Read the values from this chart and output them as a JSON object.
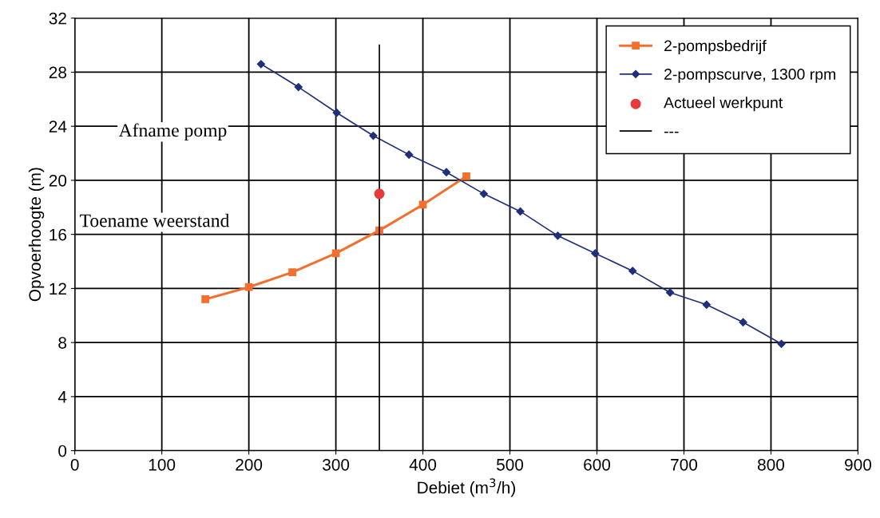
{
  "chart_data": {
    "type": "line",
    "xlabel": "Debiet (m$^{3}$/h)",
    "ylabel": "Opvoerhoogte (m)",
    "xlim": [
      0,
      900
    ],
    "xticks": [
      0,
      100,
      200,
      300,
      400,
      500,
      600,
      700,
      800,
      900
    ],
    "ylim": [
      0,
      32
    ],
    "yticks": [
      0,
      4,
      8,
      12,
      16,
      20,
      24,
      28,
      32
    ],
    "grid": true,
    "legend": "top right",
    "series": [
      {
        "name": "2-pompsbedrijf",
        "color": "#f26f2e",
        "marker": "square",
        "x": [
          150,
          200,
          250,
          300,
          350,
          400,
          450
        ],
        "values": [
          11.2,
          12.1,
          13.2,
          14.6,
          16.3,
          18.2,
          20.3
        ]
      },
      {
        "name": "2-pompscurve, 1300 rpm",
        "color": "#1f2f7a",
        "marker": "diamond",
        "x": [
          214,
          257,
          301,
          343,
          384,
          427,
          470,
          512,
          555,
          598,
          641,
          684,
          726,
          768,
          812
        ],
        "values": [
          28.6,
          26.9,
          25.0,
          23.3,
          21.9,
          20.6,
          19.0,
          17.7,
          15.9,
          14.6,
          13.3,
          11.7,
          10.8,
          9.5,
          7.9
        ]
      },
      {
        "name": "Actueel werkpunt",
        "type": "scatter",
        "color": "#e83a3a",
        "marker": "circle",
        "x": [
          350
        ],
        "values": [
          19.0
        ]
      },
      {
        "name": "---",
        "color": "#000000",
        "marker": "none",
        "x": [
          350,
          350
        ],
        "values": [
          0,
          30
        ]
      }
    ],
    "annotations": [
      "Afname pomp",
      "Toename weerstand"
    ]
  }
}
